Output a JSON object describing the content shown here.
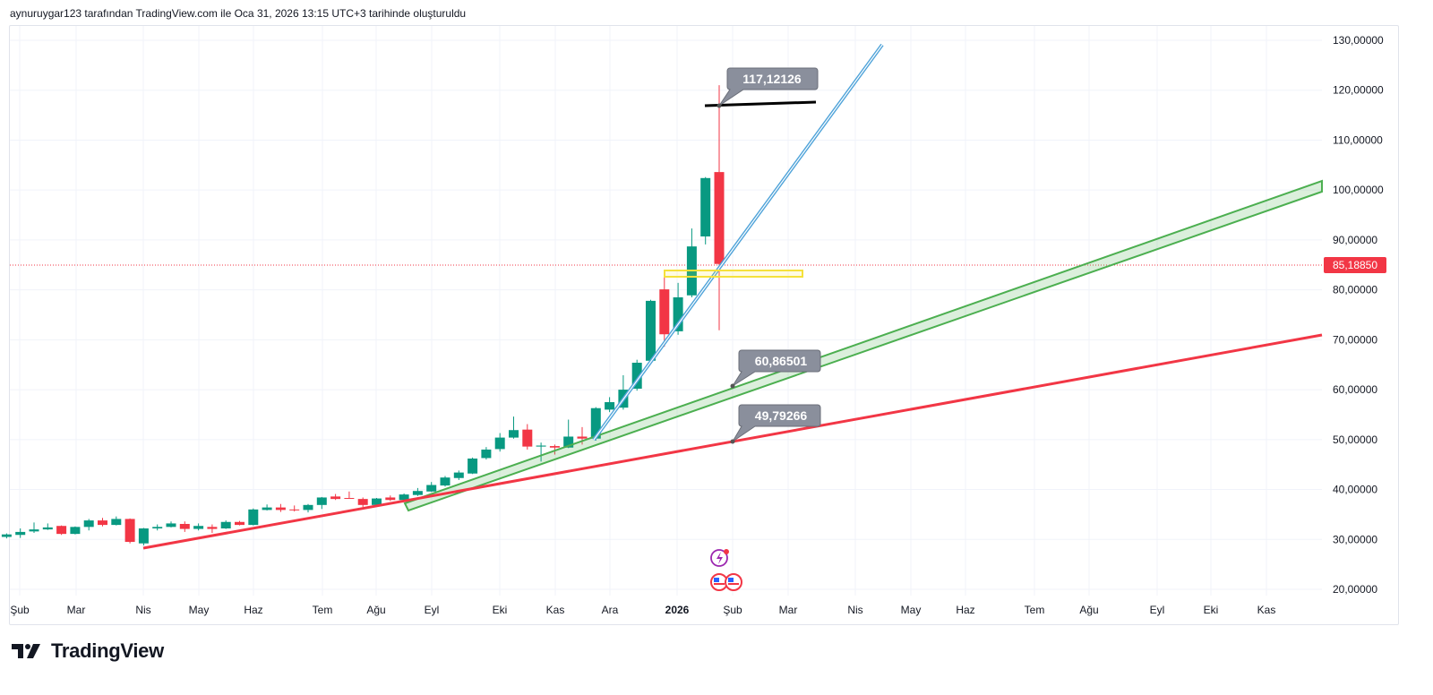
{
  "header": {
    "credit": "aynuruygar123 tarafından TradingView.com ile Oca 31, 2026 13:15 UTC+3 tarihinde oluşturuldu"
  },
  "brand": {
    "name": "TradingView"
  },
  "colors": {
    "up": "#089981",
    "down": "#f23645",
    "trend_red": "#f23645",
    "channel_green": "#4caf50",
    "blue_line": "#4fa3d9",
    "yellow_box": "#f5e13b",
    "callout": "#8a8f9c"
  },
  "chart_data": {
    "type": "candlestick",
    "title": "",
    "interval": "weekly",
    "ylim": [
      20,
      130
    ],
    "y_ticks": [
      "130,00000",
      "120,00000",
      "110,00000",
      "100,00000",
      "90,00000",
      "80,00000",
      "70,00000",
      "60,00000",
      "50,00000",
      "40,00000",
      "30,00000",
      "20,00000"
    ],
    "y_tick_values": [
      130,
      120,
      110,
      100,
      90,
      80,
      70,
      60,
      50,
      40,
      30,
      20
    ],
    "x_ticks": [
      "Şub",
      "Mar",
      "Nis",
      "May",
      "Haz",
      "Tem",
      "Ağu",
      "Eyl",
      "Eki",
      "Kas",
      "Ara",
      "2026",
      "Şub",
      "Mar",
      "Nis",
      "May",
      "Haz",
      "Tem",
      "Ağu",
      "Eyl",
      "Eki",
      "Kas"
    ],
    "last_price": 85.1885,
    "last_price_label": "85,18850",
    "candles_ohlc": [
      [
        30.5,
        31.2,
        30.2,
        31.0
      ],
      [
        30.9,
        32.2,
        30.3,
        31.5
      ],
      [
        31.6,
        33.4,
        31.3,
        32.0
      ],
      [
        32.0,
        33.2,
        31.9,
        32.4
      ],
      [
        32.7,
        32.8,
        30.9,
        31.1
      ],
      [
        31.1,
        32.6,
        31.0,
        32.5
      ],
      [
        32.5,
        34.1,
        31.8,
        33.8
      ],
      [
        33.8,
        34.3,
        32.6,
        32.9
      ],
      [
        32.9,
        34.6,
        32.8,
        34.1
      ],
      [
        34.1,
        34.2,
        29.2,
        29.5
      ],
      [
        29.2,
        32.3,
        28.8,
        32.2
      ],
      [
        32.2,
        33.0,
        31.8,
        32.5
      ],
      [
        32.5,
        33.6,
        32.4,
        33.2
      ],
      [
        33.1,
        33.6,
        31.5,
        32.1
      ],
      [
        32.1,
        33.2,
        31.8,
        32.7
      ],
      [
        32.5,
        33.0,
        31.3,
        32.1
      ],
      [
        32.2,
        33.8,
        32.1,
        33.5
      ],
      [
        33.5,
        33.7,
        32.8,
        32.9
      ],
      [
        32.9,
        36.2,
        32.8,
        36.0
      ],
      [
        35.9,
        37.0,
        35.8,
        36.4
      ],
      [
        36.4,
        37.1,
        35.5,
        35.9
      ],
      [
        36.0,
        36.8,
        35.6,
        35.9
      ],
      [
        35.9,
        37.1,
        35.4,
        36.9
      ],
      [
        36.9,
        38.5,
        36.1,
        38.4
      ],
      [
        38.6,
        39.1,
        37.9,
        38.1
      ],
      [
        38.3,
        39.6,
        38.2,
        38.2
      ],
      [
        38.1,
        38.4,
        36.5,
        36.9
      ],
      [
        36.9,
        38.3,
        36.7,
        38.2
      ],
      [
        38.4,
        38.8,
        37.7,
        37.9
      ],
      [
        37.9,
        39.2,
        37.8,
        39.0
      ],
      [
        38.9,
        40.3,
        38.7,
        39.7
      ],
      [
        39.6,
        41.5,
        39.5,
        40.9
      ],
      [
        40.8,
        42.7,
        40.6,
        42.4
      ],
      [
        42.3,
        43.8,
        41.9,
        43.4
      ],
      [
        43.2,
        46.4,
        43.1,
        46.2
      ],
      [
        46.3,
        48.5,
        46.0,
        48.0
      ],
      [
        48.1,
        51.3,
        47.6,
        50.4
      ],
      [
        50.4,
        54.6,
        50.2,
        51.9
      ],
      [
        52.0,
        53.1,
        48.0,
        48.6
      ],
      [
        48.6,
        49.4,
        45.6,
        48.8
      ],
      [
        48.7,
        49.0,
        47.0,
        48.4
      ],
      [
        48.4,
        54.0,
        48.3,
        50.6
      ],
      [
        50.6,
        52.5,
        49.0,
        50.2
      ],
      [
        50.2,
        56.5,
        49.8,
        56.3
      ],
      [
        56.0,
        58.5,
        55.5,
        57.5
      ],
      [
        56.4,
        62.9,
        56.0,
        60.0
      ],
      [
        60.2,
        66.0,
        59.8,
        65.4
      ],
      [
        65.8,
        78.0,
        65.5,
        77.8
      ],
      [
        80.1,
        82.6,
        68.6,
        71.1
      ],
      [
        71.7,
        81.4,
        71.0,
        78.5
      ],
      [
        78.9,
        92.3,
        78.5,
        88.7
      ],
      [
        90.7,
        102.6,
        89.1,
        102.4
      ],
      [
        103.6,
        121.0,
        71.9,
        85.1885
      ]
    ],
    "annotations": {
      "high_callout": "117,12126",
      "channel_callout": "60,86501",
      "trend_callout": "49,79266"
    }
  }
}
